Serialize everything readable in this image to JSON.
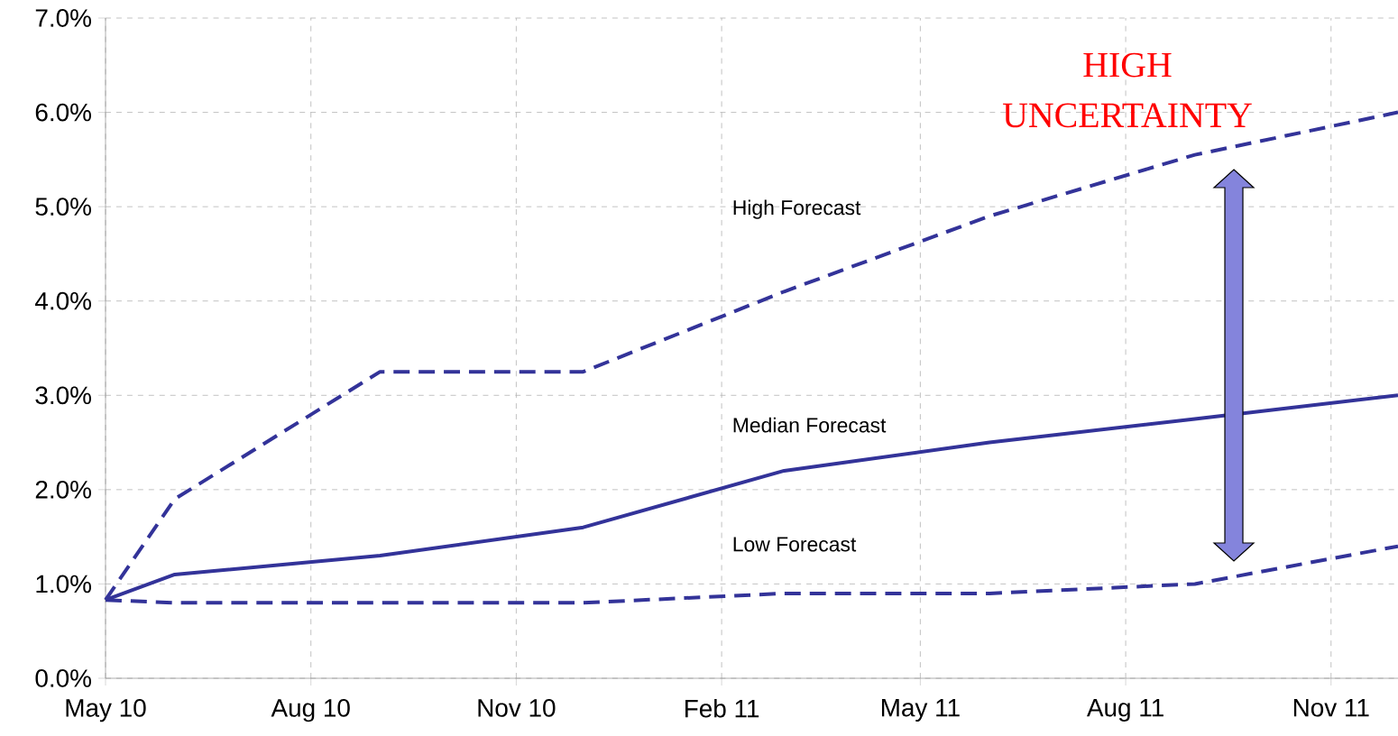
{
  "chart_data": {
    "type": "line",
    "x": [
      "2010-05",
      "2010-06",
      "2010-09",
      "2010-12",
      "2011-03",
      "2011-06",
      "2011-09",
      "2011-12"
    ],
    "series": [
      {
        "name": "High Forecast",
        "color": "#333399",
        "line_style": "dashed",
        "values": [
          0.83,
          1.9,
          3.25,
          3.25,
          4.1,
          4.9,
          5.55,
          6.0
        ]
      },
      {
        "name": "Median Forecast",
        "color": "#333399",
        "line_style": "solid",
        "values": [
          0.83,
          1.1,
          1.3,
          1.6,
          2.2,
          2.5,
          2.75,
          3.0
        ]
      },
      {
        "name": "Low Forecast",
        "color": "#333399",
        "line_style": "dashed",
        "values": [
          0.83,
          0.8,
          0.8,
          0.8,
          0.9,
          0.9,
          1.0,
          1.4
        ]
      }
    ],
    "xlim": [
      "2010-05",
      "2011-12"
    ],
    "xticks": [
      {
        "value": "2010-05",
        "label": "May 10"
      },
      {
        "value": "2010-08",
        "label": "Aug 10"
      },
      {
        "value": "2010-11",
        "label": "Nov 10"
      },
      {
        "value": "2011-02",
        "label": "Feb 11"
      },
      {
        "value": "2011-05",
        "label": "May 11"
      },
      {
        "value": "2011-08",
        "label": "Aug 11"
      },
      {
        "value": "2011-11",
        "label": "Nov 11"
      }
    ],
    "ylim": [
      0,
      7
    ],
    "yticks": [
      {
        "value": 0,
        "label": "0.0%"
      },
      {
        "value": 1,
        "label": "1.0%"
      },
      {
        "value": 2,
        "label": "2.0%"
      },
      {
        "value": 3,
        "label": "3.0%"
      },
      {
        "value": 4,
        "label": "4.0%"
      },
      {
        "value": 5,
        "label": "5.0%"
      },
      {
        "value": 6,
        "label": "6.0%"
      },
      {
        "value": 7,
        "label": "7.0%"
      }
    ],
    "grid": true,
    "legend": false,
    "marker": "none",
    "annotations": [
      "HIGH UNCERTAINTY"
    ]
  }
}
